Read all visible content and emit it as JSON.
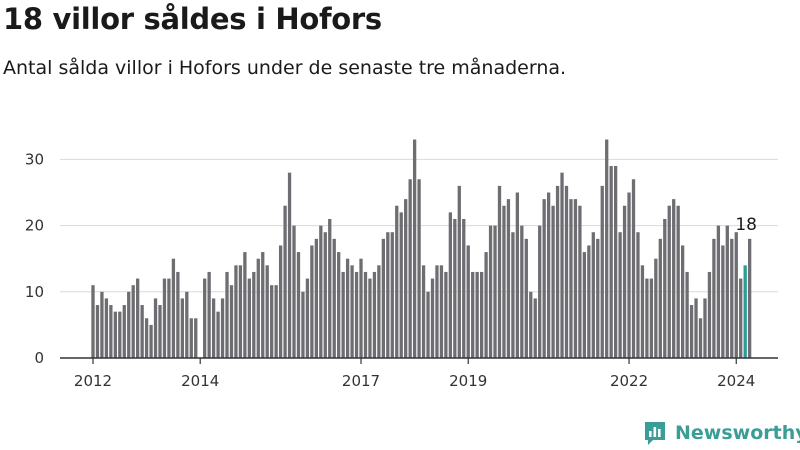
{
  "title": "18 villor såldes i Hofors",
  "subtitle": "Antal sålda villor i Hofors under de senaste tre månaderna.",
  "brand": {
    "name": "Newsworthy",
    "icon": "newsworthy-logo-icon"
  },
  "colors": {
    "bar": "#6e6d72",
    "highlight": "#2a9d94",
    "grid": "#d9d9d9",
    "axis": "#333333",
    "brand": "#3a9e96"
  },
  "chart_data": {
    "type": "bar",
    "title": "18 villor såldes i Hofors",
    "xlabel": "",
    "ylabel": "",
    "ylim": [
      0,
      35
    ],
    "yticks": [
      0,
      10,
      20,
      30
    ],
    "grid": true,
    "legend": "none",
    "x_start": "2012-01",
    "x_end": "2024-03",
    "xtick_labels": [
      "2012",
      "2014",
      "2017",
      "2019",
      "2022",
      "2024"
    ],
    "highlight": {
      "x": "2024-03",
      "value": 18,
      "label": "18"
    },
    "series": [
      {
        "values": [
          11,
          8,
          10,
          9,
          8,
          7,
          7,
          8,
          10,
          11,
          12,
          8,
          6,
          5,
          9,
          8,
          12,
          12,
          15,
          13,
          9,
          10,
          6,
          6,
          null,
          12,
          13,
          9,
          7,
          9,
          13,
          11,
          14,
          14,
          16,
          12,
          13,
          15,
          16,
          14,
          11,
          11,
          17,
          23,
          28,
          20,
          16,
          10,
          12,
          17,
          18,
          20,
          19,
          21,
          18,
          16,
          13,
          15,
          14,
          13,
          15,
          13,
          12,
          13,
          14,
          18,
          19,
          19,
          23,
          22,
          24,
          27,
          33,
          27,
          14,
          10,
          12,
          14,
          14,
          13,
          22,
          21,
          26,
          21,
          17,
          13,
          13,
          13,
          16,
          20,
          20,
          26,
          23,
          24,
          19,
          25,
          20,
          18,
          10,
          9,
          20,
          24,
          25,
          23,
          26,
          28,
          26,
          24,
          24,
          23,
          16,
          17,
          19,
          18,
          26,
          33,
          29,
          29,
          19,
          23,
          25,
          27,
          19,
          14,
          12,
          12,
          15,
          18,
          21,
          23,
          24,
          23,
          17,
          13,
          8,
          9,
          6,
          9,
          13,
          18,
          20,
          17,
          20,
          18,
          19,
          12,
          14,
          18
        ]
      }
    ]
  }
}
